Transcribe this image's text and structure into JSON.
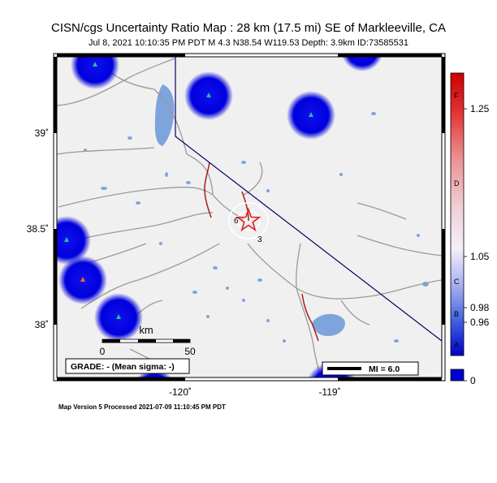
{
  "title": "CISN/cgs Uncertainty Ratio Map : 28 km (17.5 mi) SE of Markleeville, CA",
  "subtitle": "Jul  8, 2021 10:10:35 PM PDT   M 4.3   N38.54 W119.53   Depth: 3.9km   ID:73585531",
  "footer": "Map Version 5 Processed 2021-07-09 11:10:45 PM PDT",
  "map": {
    "lat_labels": [
      "39˚",
      "38.5˚",
      "38˚"
    ],
    "lon_labels": [
      "-120˚",
      "-119˚"
    ],
    "grade_label": "GRADE: - (Mean sigma: -)",
    "scale_bar": {
      "unit": "km",
      "start": "0",
      "end": "50"
    },
    "mi_legend": "MI = 6.0",
    "contour_labels": [
      "6",
      "3"
    ]
  },
  "colorbar": {
    "values": [
      "1.25",
      "1.05",
      "0.98",
      "0.96",
      "0"
    ],
    "letters": [
      "F",
      "D",
      "C",
      "B",
      "A"
    ]
  },
  "colors": {
    "land": "#f0f0f0",
    "water": "#7ea4dc",
    "road": "#9a9a9a",
    "fault": "#aa1a1a",
    "station_blue": "#0000dd",
    "epicenter": "#e02020"
  }
}
